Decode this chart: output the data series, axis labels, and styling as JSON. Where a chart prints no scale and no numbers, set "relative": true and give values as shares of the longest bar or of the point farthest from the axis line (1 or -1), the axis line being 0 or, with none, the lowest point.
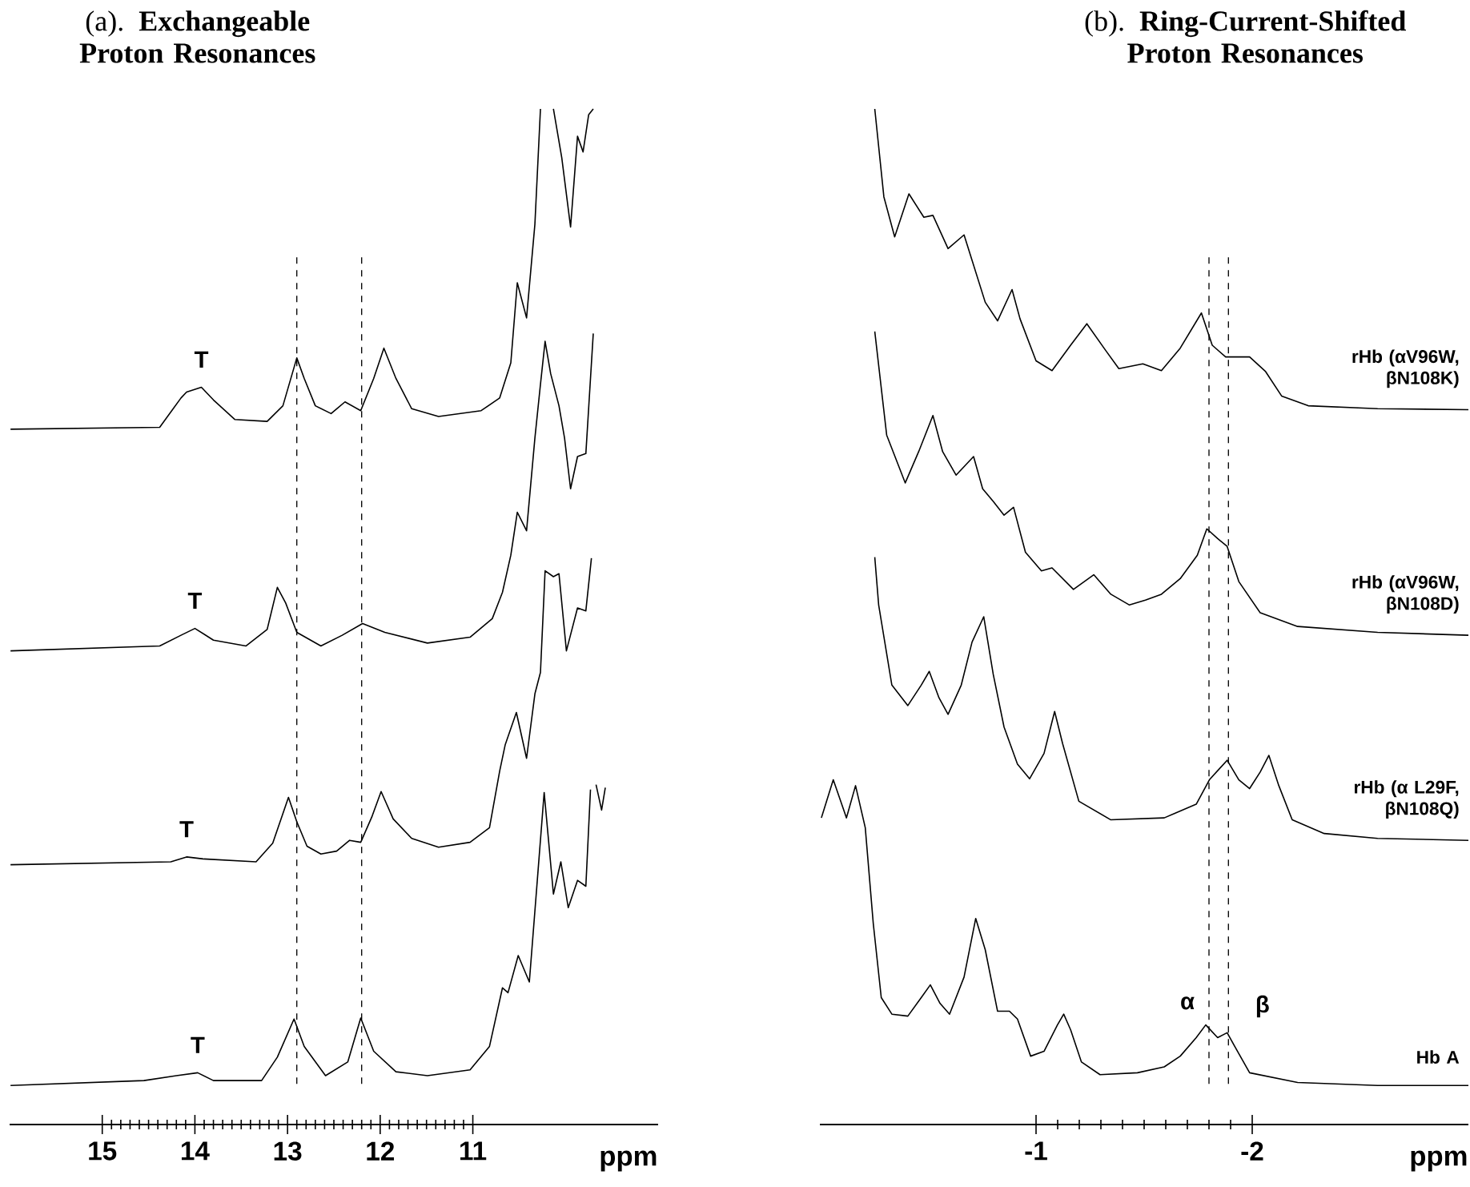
{
  "chart_data": [
    {
      "type": "line",
      "title": "(a). **Exchangeable Proton Resonances**",
      "xlabel": "ppm",
      "relative": true,
      "xlim": [
        16,
        9
      ],
      "xticks": [
        15,
        14,
        13,
        12,
        11
      ],
      "series": [
        {
          "color": "#000000",
          "x": [
            15.99,
            14.38,
            14.15,
            14.09,
            13.93,
            13.8,
            13.57,
            13.22,
            13.05,
            12.9,
            12.82,
            12.7,
            12.53,
            12.38,
            12.21,
            12.07,
            11.96,
            11.83,
            11.66,
            11.37,
            10.91,
            10.71,
            10.59,
            10.52,
            10.42,
            10.33,
            10.27,
            10.2,
            10.13,
            10.04,
            9.945,
            9.87,
            9.81,
            9.75,
            9.7
          ],
          "values": [
            0.672,
            0.674,
            0.704,
            0.71,
            0.715,
            0.702,
            0.682,
            0.68,
            0.696,
            0.745,
            0.724,
            0.696,
            0.688,
            0.7,
            0.691,
            0.724,
            0.755,
            0.724,
            0.693,
            0.685,
            0.691,
            0.704,
            0.74,
            0.822,
            0.786,
            0.882,
            1.0,
            null,
            1.0,
            0.95,
            0.879,
            0.972,
            0.956,
            0.994,
            1.0
          ]
        },
        {
          "color": "#000000",
          "x": [
            15.99,
            14.38,
            14.15,
            14.0,
            13.8,
            13.45,
            13.22,
            13.11,
            13.02,
            12.9,
            12.64,
            12.41,
            12.19,
            11.95,
            11.49,
            11.03,
            10.79,
            10.68,
            10.59,
            10.52,
            10.42,
            10.33,
            10.27,
            10.22,
            10.16,
            10.07,
            10.01,
            9.945,
            9.87,
            9.78,
            9.7
          ],
          "values": [
            0.445,
            0.45,
            0.461,
            0.468,
            0.456,
            0.45,
            0.467,
            0.51,
            0.494,
            0.464,
            0.45,
            0.461,
            0.473,
            0.464,
            0.453,
            0.459,
            0.478,
            0.505,
            0.543,
            0.587,
            0.568,
            0.663,
            0.718,
            0.762,
            0.729,
            0.696,
            0.663,
            0.611,
            0.644,
            0.647,
            0.77
          ]
        },
        {
          "color": "#000000",
          "x": [
            15.99,
            14.26,
            14.09,
            13.91,
            13.34,
            13.16,
            12.99,
            12.9,
            12.79,
            12.64,
            12.47,
            12.33,
            12.21,
            12.09,
            11.99,
            11.86,
            11.66,
            11.37,
            11.03,
            10.82,
            10.71,
            10.65,
            10.53,
            10.42,
            10.33,
            10.27,
            10.22,
            10.13,
            10.07,
            9.99,
            9.87,
            9.78,
            9.72
          ],
          "values": [
            0.226,
            0.229,
            0.234,
            0.232,
            0.229,
            0.248,
            0.295,
            0.27,
            0.245,
            0.237,
            0.24,
            0.251,
            0.249,
            0.275,
            0.301,
            0.273,
            0.253,
            0.244,
            0.249,
            0.264,
            0.322,
            0.349,
            0.382,
            0.335,
            0.401,
            0.423,
            0.527,
            0.521,
            0.524,
            0.445,
            0.489,
            0.486,
            0.54
          ]
        },
        {
          "color": "#000000",
          "x": [
            15.99,
            14.55,
            14.2,
            13.97,
            13.8,
            13.28,
            13.11,
            12.93,
            12.82,
            12.59,
            12.35,
            12.21,
            12.07,
            11.83,
            11.49,
            11.03,
            10.82,
            10.68,
            10.62,
            10.51,
            10.39,
            10.3,
            10.23,
            10.13,
            10.05,
            9.97,
            9.87,
            9.78,
            9.73,
            9.7,
            9.67,
            9.61,
            9.57
          ],
          "values": [
            0.0,
            0.005,
            0.01,
            0.013,
            0.005,
            0.005,
            0.029,
            0.068,
            0.04,
            0.01,
            0.024,
            0.069,
            0.035,
            0.014,
            0.01,
            0.016,
            0.04,
            0.1,
            0.095,
            0.133,
            0.106,
            0.215,
            0.3,
            0.196,
            0.229,
            0.182,
            0.21,
            0.204,
            0.303,
            null,
            0.308,
            0.282,
            0.305
          ]
        }
      ],
      "ref_lines": [
        {
          "axis": "x",
          "value": 12.9,
          "color": "#000000",
          "line_style": "dashed"
        },
        {
          "axis": "x",
          "value": 12.2,
          "color": "#000000",
          "line_style": "dashed"
        }
      ],
      "annotations": [
        {
          "text": "T",
          "x": 13.93,
          "y": 0.715
        },
        {
          "text": "T",
          "x": 14.0,
          "y": 0.468
        },
        {
          "text": "T",
          "x": 14.09,
          "y": 0.234
        },
        {
          "text": "T",
          "x": 13.97,
          "y": 0.013
        }
      ]
    },
    {
      "type": "line",
      "title": "(b). **Ring-Current-Shifted Proton Resonances**",
      "xlabel": "ppm",
      "relative": true,
      "xlim": [
        0,
        -3
      ],
      "xticks": [
        -1,
        -2
      ],
      "series": [
        {
          "name": "rHb (αV96W, βN108K)",
          "color": "#000000",
          "x": [
            -0.254,
            -0.296,
            -0.346,
            -0.412,
            -0.481,
            -0.523,
            -0.593,
            -0.667,
            -0.704,
            -0.765,
            -0.822,
            -0.889,
            -0.926,
            -1.0,
            -1.074,
            -1.16,
            -1.235,
            -1.321,
            -1.383,
            -1.494,
            -1.58,
            -1.667,
            -1.765,
            -1.815,
            -1.877,
            -1.988,
            -2.062,
            -2.136,
            -2.259,
            -2.58,
            -3.0
          ],
          "values": [
            1.0,
            0.91,
            0.869,
            0.913,
            0.889,
            0.891,
            0.857,
            0.871,
            0.845,
            0.802,
            0.783,
            0.815,
            0.785,
            0.742,
            0.732,
            0.758,
            0.78,
            0.753,
            0.734,
            0.739,
            0.732,
            0.755,
            0.791,
            0.758,
            0.746,
            0.746,
            0.731,
            0.706,
            0.696,
            0.693,
            0.692
          ]
        },
        {
          "name": "rHb (αV96W, βN108D)",
          "color": "#000000",
          "x": [
            -0.254,
            -0.309,
            -0.395,
            -0.457,
            -0.523,
            -0.568,
            -0.63,
            -0.711,
            -0.753,
            -0.802,
            -0.852,
            -0.896,
            -0.951,
            -1.025,
            -1.074,
            -1.173,
            -1.267,
            -1.346,
            -1.432,
            -1.506,
            -1.58,
            -1.667,
            -1.746,
            -1.79,
            -1.84,
            -1.884,
            -1.938,
            -2.037,
            -2.21,
            -2.58,
            -3.0
          ],
          "values": [
            0.772,
            0.666,
            0.617,
            0.649,
            0.686,
            0.649,
            0.625,
            0.644,
            0.611,
            0.598,
            0.584,
            0.592,
            0.546,
            0.527,
            0.53,
            0.508,
            0.523,
            0.503,
            0.492,
            0.497,
            0.503,
            0.519,
            0.543,
            0.57,
            0.56,
            0.552,
            0.516,
            0.484,
            0.47,
            0.464,
            0.461
          ]
        },
        {
          "name": "rHb (α L29F, βN108Q)",
          "color": "#000000",
          "x": [
            -0.254,
            -0.272,
            -0.333,
            -0.407,
            -0.469,
            -0.506,
            -0.551,
            -0.593,
            -0.654,
            -0.704,
            -0.758,
            -0.802,
            -0.852,
            -0.914,
            -0.97,
            -1.037,
            -1.086,
            -1.123,
            -1.198,
            -1.346,
            -1.593,
            -1.741,
            -1.802,
            -1.884,
            -1.938,
            -1.988,
            -2.037,
            -2.077,
            -2.123,
            -2.185,
            -2.333,
            -2.58,
            -3.0
          ],
          "values": [
            0.541,
            0.492,
            0.41,
            0.389,
            0.41,
            0.424,
            0.397,
            0.38,
            0.41,
            0.454,
            0.48,
            0.421,
            0.367,
            0.329,
            0.314,
            0.34,
            0.383,
            0.35,
            0.291,
            0.272,
            0.274,
            0.288,
            0.313,
            0.333,
            0.313,
            0.304,
            0.321,
            0.338,
            0.307,
            0.272,
            0.258,
            0.253,
            0.251
          ]
        },
        {
          "name": "Hb A",
          "color": "#000000",
          "x": [
            -0.007,
            -0.062,
            -0.123,
            -0.165,
            -0.21,
            -0.247,
            -0.284,
            -0.333,
            -0.407,
            -0.469,
            -0.511,
            -0.556,
            -0.6,
            -0.667,
            -0.721,
            -0.765,
            -0.822,
            -0.877,
            -0.914,
            -0.975,
            -1.037,
            -1.099,
            -1.128,
            -1.16,
            -1.21,
            -1.296,
            -1.469,
            -1.593,
            -1.667,
            -1.741,
            -1.785,
            -1.84,
            -1.884,
            -1.919,
            -1.988,
            -2.21,
            -2.58,
            -3.0
          ],
          "values": [
            0.274,
            0.313,
            0.274,
            0.307,
            0.264,
            0.166,
            0.09,
            0.073,
            0.071,
            0.09,
            0.103,
            0.084,
            0.073,
            0.111,
            0.171,
            0.139,
            0.076,
            0.076,
            0.068,
            0.03,
            0.035,
            0.062,
            0.073,
            0.057,
            0.024,
            0.011,
            0.013,
            0.019,
            0.03,
            0.049,
            0.062,
            0.049,
            0.054,
            0.04,
            0.013,
            0.003,
            0.0,
            0.0
          ]
        }
      ],
      "ref_lines": [
        {
          "axis": "x",
          "value": -1.8,
          "color": "#000000",
          "line_style": "dashed"
        },
        {
          "axis": "x",
          "value": -1.89,
          "color": "#000000",
          "line_style": "dashed"
        }
      ],
      "annotations": [
        {
          "text": "α",
          "x": -1.785,
          "y": 0.062
        },
        {
          "text": "β",
          "x": -1.884,
          "y": 0.054
        }
      ]
    }
  ]
}
